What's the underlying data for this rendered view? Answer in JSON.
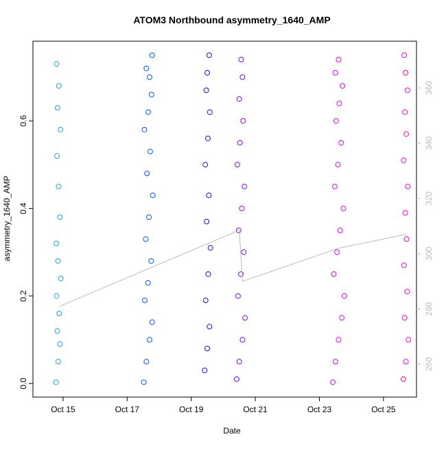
{
  "chart_data": {
    "type": "scatter",
    "title": "ATOM3 Northbound asymmetry_1640_AMP",
    "xlabel": "Date",
    "ylabel": "asymmetry_1640_AMP",
    "xlim": [
      14.06,
      26.03
    ],
    "ylim": [
      -0.031,
      0.782
    ],
    "y2lim": [
      248.1,
      376.9
    ],
    "xticks": [
      {
        "value": 15,
        "label": "Oct 15"
      },
      {
        "value": 17,
        "label": "Oct 17"
      },
      {
        "value": 19,
        "label": "Oct 19"
      },
      {
        "value": 21,
        "label": "Oct 21"
      },
      {
        "value": 23,
        "label": "Oct 23"
      },
      {
        "value": 25,
        "label": "Oct 25"
      }
    ],
    "yticks": [
      {
        "value": 0,
        "label": "0.0"
      },
      0.2,
      0.4,
      0.6
    ],
    "y2ticks": [
      260,
      280,
      300,
      320,
      340,
      360
    ],
    "series": [
      {
        "color": "#1aa3e8",
        "x": [
          14.78,
          14.85,
          14.9,
          14.82,
          14.88,
          14.8,
          14.93,
          14.84,
          14.79,
          14.9,
          14.86,
          14.81,
          14.92,
          14.83,
          14.87,
          14.8
        ],
        "values": [
          0.003,
          0.05,
          0.09,
          0.12,
          0.16,
          0.2,
          0.24,
          0.28,
          0.32,
          0.38,
          0.45,
          0.52,
          0.58,
          0.63,
          0.68,
          0.73
        ]
      },
      {
        "color": "#0055ff",
        "x": [
          17.52,
          17.6,
          17.7,
          17.78,
          17.55,
          17.65,
          17.75,
          17.58,
          17.68,
          17.8,
          17.62,
          17.72,
          17.54,
          17.66,
          17.76,
          17.7,
          17.6,
          17.78
        ],
        "values": [
          0.003,
          0.05,
          0.1,
          0.14,
          0.19,
          0.23,
          0.28,
          0.33,
          0.38,
          0.43,
          0.48,
          0.53,
          0.58,
          0.62,
          0.66,
          0.7,
          0.72,
          0.75
        ]
      },
      {
        "color": "#2a00f0",
        "x": [
          19.42,
          19.5,
          19.57,
          19.45,
          19.53,
          19.6,
          19.48,
          19.55,
          19.44,
          19.52,
          19.58,
          19.47,
          19.5,
          19.56
        ],
        "values": [
          0.03,
          0.08,
          0.13,
          0.19,
          0.25,
          0.31,
          0.37,
          0.43,
          0.5,
          0.56,
          0.62,
          0.67,
          0.71,
          0.75
        ]
      },
      {
        "color": "#8800ff",
        "x": [
          20.42,
          20.5,
          20.6,
          20.68,
          20.46,
          20.55,
          20.64,
          20.48,
          20.58,
          20.66,
          20.44,
          20.52,
          20.62,
          20.5,
          20.6,
          20.56
        ],
        "values": [
          0.01,
          0.05,
          0.1,
          0.15,
          0.2,
          0.25,
          0.3,
          0.35,
          0.4,
          0.45,
          0.5,
          0.55,
          0.6,
          0.65,
          0.7,
          0.74
        ]
      },
      {
        "color": "#dd00ff",
        "x": [
          23.42,
          23.5,
          23.6,
          23.7,
          23.78,
          23.45,
          23.55,
          23.65,
          23.75,
          23.48,
          23.58,
          23.68,
          23.52,
          23.62,
          23.72,
          23.5,
          23.6
        ],
        "values": [
          0.003,
          0.05,
          0.1,
          0.15,
          0.2,
          0.25,
          0.3,
          0.35,
          0.4,
          0.45,
          0.5,
          0.55,
          0.6,
          0.64,
          0.68,
          0.71,
          0.74
        ]
      },
      {
        "color": "#ff00cc",
        "x": [
          25.62,
          25.7,
          25.78,
          25.66,
          25.74,
          25.64,
          25.72,
          25.68,
          25.76,
          25.63,
          25.71,
          25.67,
          25.75,
          25.69,
          25.65
        ],
        "values": [
          0.01,
          0.05,
          0.1,
          0.15,
          0.21,
          0.27,
          0.33,
          0.39,
          0.45,
          0.51,
          0.57,
          0.62,
          0.67,
          0.71,
          0.75
        ]
      },
      {
        "color": "#bbbbbb",
        "kind": "line",
        "axis": "y2",
        "x": [
          14.9,
          20.5,
          20.6,
          23.6,
          25.7
        ],
        "values": [
          281,
          308.5,
          290,
          302,
          307
        ]
      }
    ]
  }
}
